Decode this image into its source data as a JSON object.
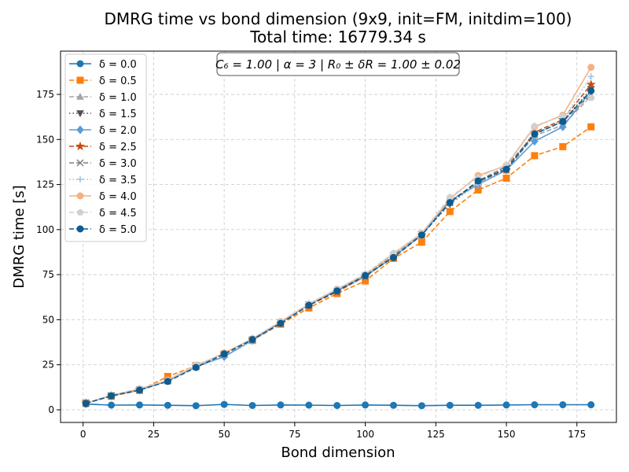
{
  "chart_data": {
    "type": "line",
    "title": "DMRG time vs bond dimension (9x9, init=FM, initdim=100)",
    "subtitle": "Total time: 16779.34 s",
    "annotation": "C₆ = 1.00 | α = 3 | R₀ ± δR = 1.00 ± 0.02",
    "xlabel": "Bond dimension",
    "ylabel": "DMRG time [s]",
    "xlim": [
      -8,
      189
    ],
    "ylim": [
      -7,
      199
    ],
    "xticks": [
      0,
      25,
      50,
      75,
      100,
      125,
      150,
      175
    ],
    "yticks": [
      0,
      25,
      50,
      75,
      100,
      125,
      150,
      175
    ],
    "grid": true,
    "legend_position": "top-left",
    "x": [
      1,
      10,
      20,
      30,
      40,
      50,
      60,
      70,
      80,
      90,
      100,
      110,
      120,
      130,
      140,
      150,
      160,
      170,
      180
    ],
    "series": [
      {
        "name": "δ = 0.0",
        "color": "#1f77b4",
        "marker": "circle",
        "dash": "solid",
        "values": [
          3.2,
          2.6,
          2.7,
          2.5,
          2.3,
          3.0,
          2.4,
          2.7,
          2.6,
          2.4,
          2.7,
          2.5,
          2.3,
          2.5,
          2.5,
          2.7,
          2.8,
          2.8,
          2.8
        ]
      },
      {
        "name": "δ = 0.5",
        "color": "#ff7f0e",
        "marker": "square",
        "dash": "dashed",
        "values": [
          3.8,
          7.5,
          10.8,
          18.5,
          24.5,
          31.0,
          38.5,
          47.5,
          56.5,
          64.5,
          71.5,
          84.0,
          93.0,
          110.0,
          122.0,
          128.5,
          141.0,
          146.0,
          157.0
        ]
      },
      {
        "name": "δ = 1.0",
        "color": "#a5a5a5",
        "marker": "triangle-up",
        "dash": "dashed",
        "values": [
          3.6,
          8.0,
          11.5,
          16.0,
          24.0,
          30.5,
          38.5,
          48.0,
          58.0,
          66.5,
          74.0,
          86.0,
          97.0,
          116.0,
          126.0,
          133.0,
          152.0,
          158.0,
          174.0
        ]
      },
      {
        "name": "δ = 1.5",
        "color": "#505050",
        "marker": "triangle-down",
        "dash": "dotted",
        "values": [
          3.5,
          7.8,
          11.2,
          16.0,
          24.0,
          31.0,
          39.0,
          48.5,
          58.5,
          66.0,
          74.5,
          85.5,
          97.5,
          114.0,
          126.5,
          134.0,
          153.0,
          160.0,
          178.0
        ]
      },
      {
        "name": "δ = 2.0",
        "color": "#5b9bd5",
        "marker": "diamond",
        "dash": "solid",
        "values": [
          3.7,
          7.8,
          11.0,
          16.0,
          24.0,
          29.5,
          38.5,
          48.5,
          58.5,
          66.0,
          74.0,
          85.0,
          97.0,
          116.0,
          125.0,
          133.0,
          149.0,
          157.0,
          177.0
        ]
      },
      {
        "name": "δ = 2.5",
        "color": "#c84b0c",
        "marker": "star",
        "dash": "dashed",
        "values": [
          3.6,
          7.8,
          11.2,
          16.2,
          24.0,
          31.0,
          39.0,
          48.0,
          58.0,
          65.5,
          74.0,
          85.0,
          97.0,
          115.0,
          127.0,
          133.0,
          154.0,
          161.0,
          180.5
        ]
      },
      {
        "name": "δ = 3.0",
        "color": "#7f7f7f",
        "marker": "x",
        "dash": "dashed",
        "values": [
          3.6,
          8.0,
          11.2,
          16.0,
          24.0,
          31.0,
          39.0,
          48.0,
          58.0,
          66.0,
          74.5,
          85.5,
          97.5,
          115.0,
          127.0,
          135.0,
          153.0,
          160.0,
          175.0
        ]
      },
      {
        "name": "δ = 3.5",
        "color": "#9dc3e6",
        "marker": "plus",
        "dash": "dotted",
        "values": [
          3.6,
          7.8,
          11.0,
          16.0,
          24.0,
          30.5,
          38.5,
          48.5,
          58.5,
          66.0,
          74.0,
          85.0,
          97.0,
          114.5,
          125.0,
          133.5,
          152.0,
          161.0,
          185.0
        ]
      },
      {
        "name": "δ = 4.0",
        "color": "#f4b183",
        "marker": "circle",
        "dash": "solid",
        "values": [
          3.7,
          8.0,
          11.5,
          16.5,
          24.5,
          31.5,
          39.5,
          49.0,
          58.5,
          67.0,
          75.0,
          86.5,
          98.0,
          117.0,
          130.0,
          135.5,
          157.0,
          163.5,
          190.0
        ]
      },
      {
        "name": "δ = 4.5",
        "color": "#d0d0d0",
        "marker": "pentagon",
        "dash": "dashed",
        "values": [
          3.6,
          8.2,
          11.8,
          16.5,
          25.0,
          31.0,
          39.5,
          49.0,
          59.0,
          67.0,
          75.5,
          87.0,
          98.0,
          118.0,
          129.0,
          136.0,
          157.5,
          163.0,
          173.0
        ]
      },
      {
        "name": "δ = 5.0",
        "color": "#0b5c92",
        "marker": "circle",
        "dash": "dashed",
        "values": [
          3.6,
          7.8,
          11.0,
          15.8,
          23.5,
          31.0,
          39.0,
          48.0,
          58.0,
          66.0,
          74.5,
          84.5,
          97.0,
          115.0,
          127.0,
          133.5,
          153.0,
          160.0,
          177.0
        ]
      }
    ]
  }
}
